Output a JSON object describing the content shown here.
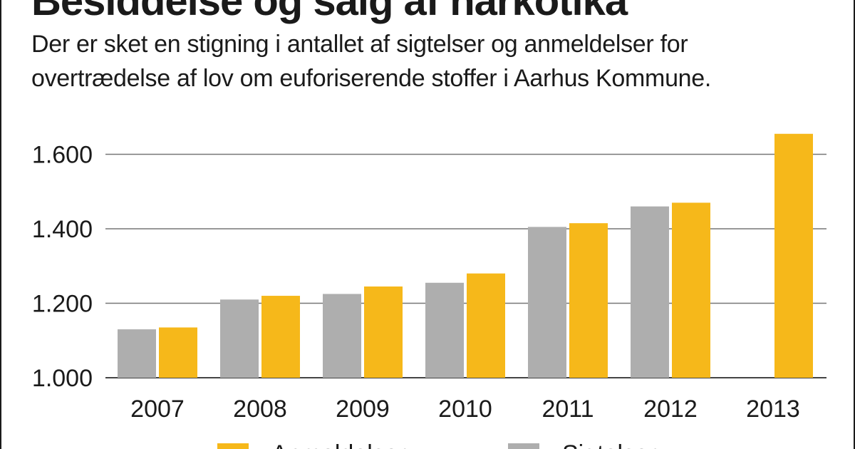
{
  "title": "Besiddelse og salg af narkotika",
  "subtitle": "Der er sket en stigning i antallet af sigtelser og anmeldelser for overtrædelse af lov om euforiserende stoffer i Aarhus Kommune.",
  "colors": {
    "anmeldelser": "#f6b81a",
    "sigtelser": "#aeaeae",
    "grid": "#777777"
  },
  "chart_data": {
    "type": "bar",
    "categories": [
      "2007",
      "2008",
      "2009",
      "2010",
      "2011",
      "2012",
      "2013"
    ],
    "series": [
      {
        "name": "Sigtelser",
        "values": [
          1130,
          1210,
          1225,
          1255,
          1405,
          1460,
          null
        ]
      },
      {
        "name": "Anmeldelser",
        "values": [
          1135,
          1220,
          1245,
          1280,
          1415,
          1470,
          1655
        ]
      }
    ],
    "yticks": [
      "1.000",
      "1.200",
      "1.400",
      "1.600"
    ],
    "ytick_values": [
      1000,
      1200,
      1400,
      1600
    ],
    "ylim": [
      1000,
      1700
    ],
    "grid": true,
    "legend": [
      "Anmeldelser",
      "Sigtelser"
    ],
    "legend_position": "bottom"
  }
}
